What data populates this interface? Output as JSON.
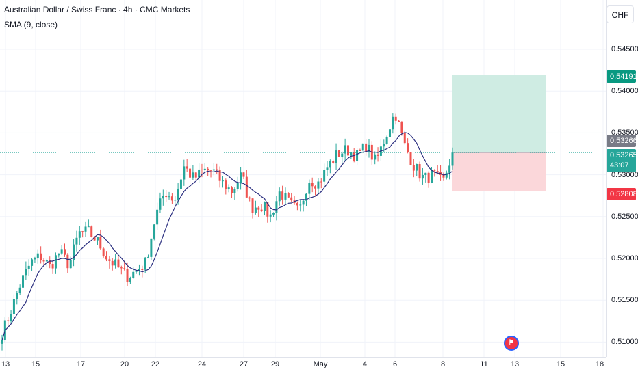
{
  "header": {
    "title": "Australian Dollar / Swiss Franc · 4h · CMC Markets",
    "indicator": "SMA (9, close)"
  },
  "price_axis": {
    "currency": "CHF",
    "ticks": [
      "0.54500",
      "0.54000",
      "0.53500",
      "0.53000",
      "0.52500",
      "0.52000",
      "0.51500",
      "0.51000"
    ]
  },
  "price_tags": {
    "take_profit": "0.54191",
    "last_close": "0.53266",
    "live_price": "0.53265",
    "countdown": "43:07",
    "stop_loss": "0.52808"
  },
  "time_axis": [
    "13",
    "15",
    "17",
    "20",
    "22",
    "24",
    "27",
    "29",
    "May",
    "4",
    "6",
    "8",
    "11",
    "13",
    "15",
    "18"
  ],
  "colors": {
    "up": "#26a69a",
    "down": "#ef5350",
    "sma": "#2a2e7f",
    "profit_zone": "#cfece3",
    "loss_zone": "#fbd7da"
  },
  "chart_data": {
    "type": "candlestick",
    "symbol": "AUDCHF",
    "interval": "4h",
    "ylim": [
      0.5095,
      0.5485
    ],
    "position": {
      "entry": 0.53265,
      "target": 0.54191,
      "stop": 0.52808
    },
    "close_waypoints": [
      0.511,
      0.514,
      0.5172,
      0.5195,
      0.5203,
      0.519,
      0.5208,
      0.5192,
      0.523,
      0.5232,
      0.522,
      0.52,
      0.519,
      0.5178,
      0.5185,
      0.5195,
      0.525,
      0.528,
      0.527,
      0.531,
      0.5295,
      0.5305,
      0.5305,
      0.529,
      0.528,
      0.53,
      0.526,
      0.5265,
      0.525,
      0.528,
      0.5265,
      0.5255,
      0.5295,
      0.529,
      0.531,
      0.5325,
      0.533,
      0.5322,
      0.5335,
      0.5315,
      0.5345,
      0.5375,
      0.5335,
      0.531,
      0.5295,
      0.53,
      0.529,
      0.5326
    ],
    "sma_period": 9,
    "candle_count": 152
  }
}
